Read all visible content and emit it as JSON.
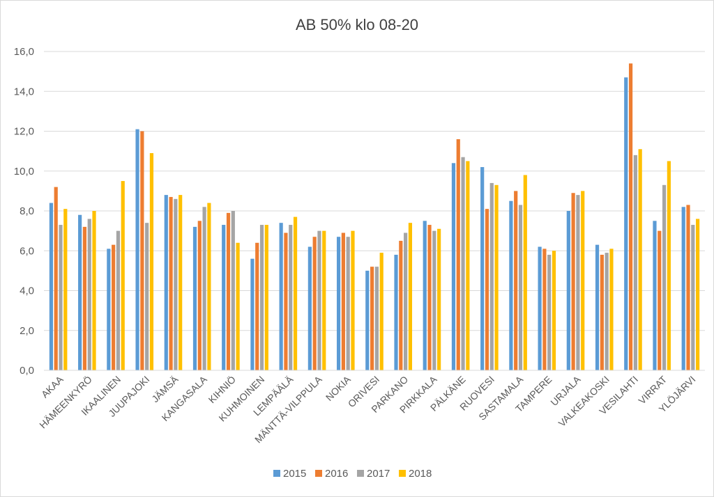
{
  "chart_data": {
    "type": "bar",
    "title": "AB 50% klo 08-20",
    "xlabel": "",
    "ylabel": "",
    "ylim": [
      0,
      16
    ],
    "yticks": [
      "0,0",
      "2,0",
      "4,0",
      "6,0",
      "8,0",
      "10,0",
      "12,0",
      "14,0",
      "16,0"
    ],
    "grid": true,
    "legend_position": "bottom",
    "categories": [
      "AKAA",
      "HÄMEENKYRÖ",
      "IKAALINEN",
      "JUUPAJOKI",
      "JÄMSÄ",
      "KANGASALA",
      "KIHNIÖ",
      "KUHMOINEN",
      "LEMPÄÄLÄ",
      "MÄNTTÄ-VILPPULA",
      "NOKIA",
      "ORIVESI",
      "PARKANO",
      "PIRKKALA",
      "PÄLKÄNE",
      "RUOVESI",
      "SASTAMALA",
      "TAMPERE",
      "URJALA",
      "VALKEAKOSKI",
      "VESILAHTI",
      "VIRRAT",
      "YLÖJÄRVI"
    ],
    "series": [
      {
        "name": "2015",
        "color": "#5b9bd5",
        "values": [
          8.4,
          7.8,
          6.1,
          12.1,
          8.8,
          7.2,
          7.3,
          5.6,
          7.4,
          6.2,
          6.7,
          5.0,
          5.8,
          7.5,
          10.4,
          10.2,
          8.5,
          6.2,
          8.0,
          6.3,
          14.7,
          7.5,
          8.2
        ]
      },
      {
        "name": "2016",
        "color": "#ed7d31",
        "values": [
          9.2,
          7.2,
          6.3,
          12.0,
          8.7,
          7.5,
          7.9,
          6.4,
          6.9,
          6.7,
          6.9,
          5.2,
          6.5,
          7.3,
          11.6,
          8.1,
          9.0,
          6.1,
          8.9,
          5.8,
          15.4,
          7.0,
          8.3
        ]
      },
      {
        "name": "2017",
        "color": "#a5a5a5",
        "values": [
          7.3,
          7.6,
          7.0,
          7.4,
          8.6,
          8.2,
          8.0,
          7.3,
          7.3,
          7.0,
          6.7,
          5.2,
          6.9,
          7.0,
          10.7,
          9.4,
          8.3,
          5.8,
          8.8,
          5.9,
          10.8,
          9.3,
          7.3
        ]
      },
      {
        "name": "2018",
        "color": "#ffc000",
        "values": [
          8.1,
          8.0,
          9.5,
          10.9,
          8.8,
          8.4,
          6.4,
          7.3,
          7.7,
          7.0,
          7.0,
          5.9,
          7.4,
          7.1,
          10.5,
          9.3,
          9.8,
          6.0,
          9.0,
          6.1,
          11.1,
          10.5,
          7.6
        ]
      }
    ]
  }
}
